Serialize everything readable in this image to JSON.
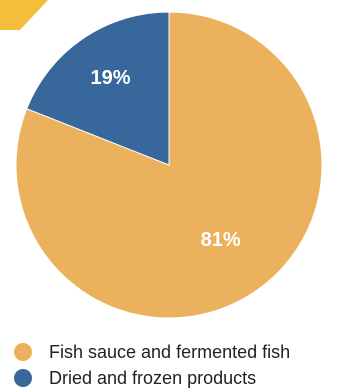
{
  "colors": {
    "fish_sauce": "#EBB15C",
    "dried_frozen": "#38679B",
    "corner_accent": "#F4BE3A"
  },
  "chart_data": {
    "type": "pie",
    "title": "",
    "slices": [
      {
        "name": "Fish sauce and fermented fish",
        "value": 81,
        "label": "81%",
        "color": "#EBB15C"
      },
      {
        "name": "Dried and frozen products",
        "value": 19,
        "label": "19%",
        "color": "#38679B"
      }
    ],
    "legend_position": "bottom"
  },
  "legend": {
    "items": [
      {
        "label": "Fish sauce and fermented fish",
        "color": "#EBB15C"
      },
      {
        "label": "Dried and frozen products",
        "color": "#38679B"
      }
    ]
  }
}
